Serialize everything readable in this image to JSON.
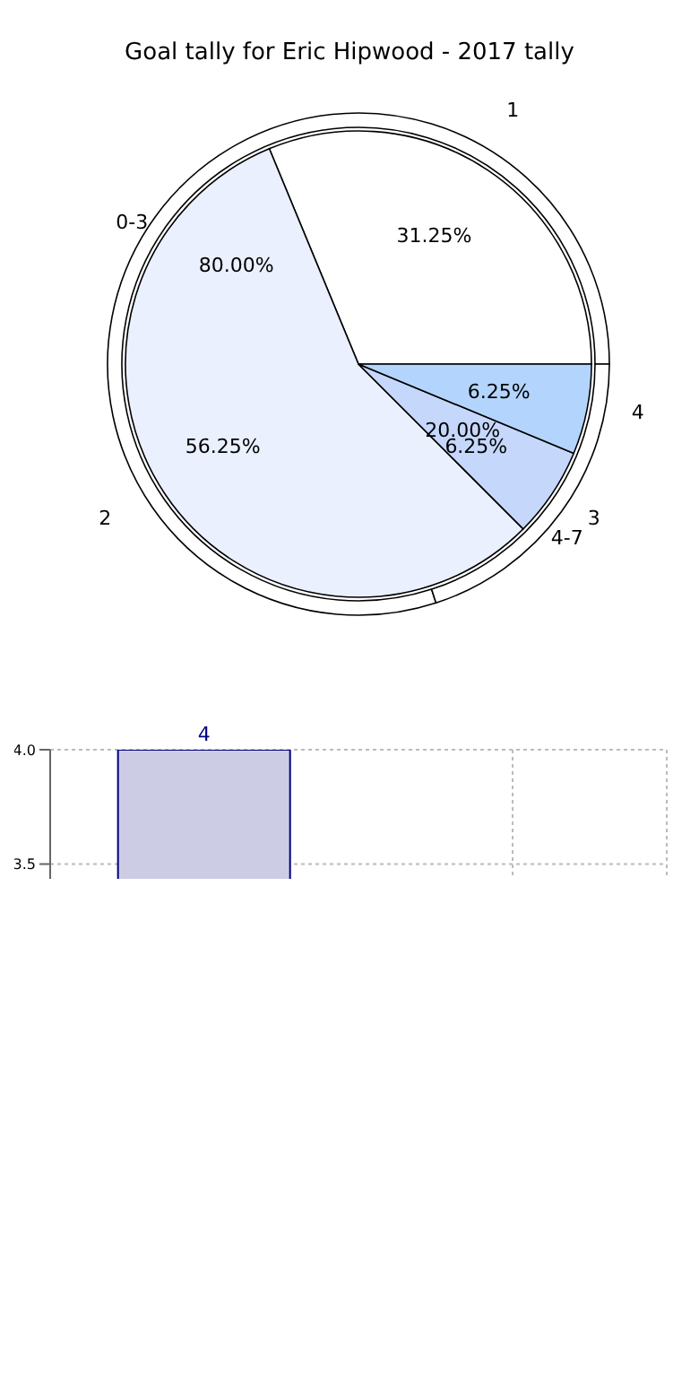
{
  "chart_data": [
    {
      "type": "pie",
      "title": "Goal tally for Eric Hipwood - 2017 tally",
      "categories": [
        "1",
        "2",
        "3",
        "4"
      ],
      "values": [
        31.25,
        56.25,
        6.25,
        6.25
      ],
      "colors": [
        "#ffffff",
        "#eaf0fd",
        "#c6d7fc",
        "#b3d5fd"
      ],
      "value_labels": [
        "31.25%",
        "56.25%",
        "6.25%",
        "6.25%"
      ]
    },
    {
      "type": "donut",
      "categories": [
        "0-3",
        "4-7"
      ],
      "values": [
        80,
        20
      ],
      "colors": [
        "#ffffff",
        "#ffffff"
      ],
      "value_labels": [
        "80.00%",
        "20.00%"
      ]
    },
    {
      "type": "bar",
      "categories": [
        null,
        null
      ],
      "values": [
        4,
        null
      ],
      "color": "#cccce5",
      "value_labels": [
        "4",
        null
      ],
      "ylim": [
        3.2,
        4.0
      ],
      "yticks": [
        {
          "value": 3.5,
          "label": "3.5"
        },
        {
          "value": 4.0,
          "label": "4.0"
        }
      ],
      "grid": true,
      "tick_labels": "y"
    }
  ]
}
